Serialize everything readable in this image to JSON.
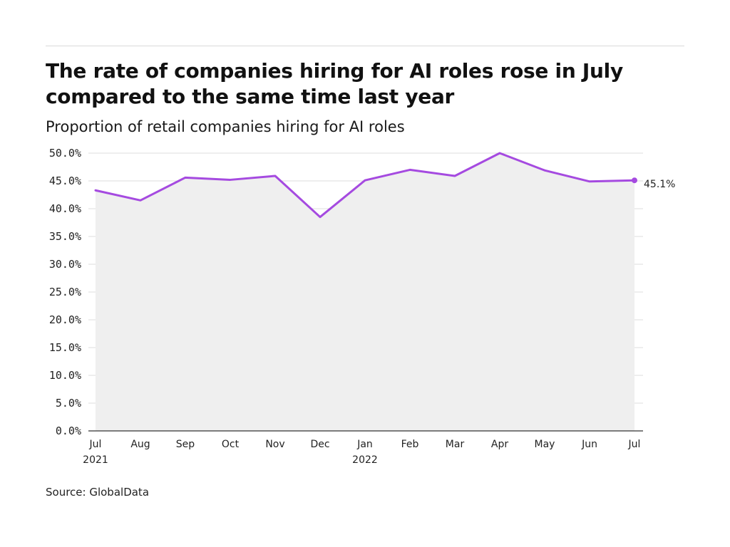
{
  "title": "The rate of companies hiring for AI roles rose in July compared to the same time last year",
  "subtitle": "Proportion of retail companies hiring for AI roles",
  "source": "Source: GlobalData",
  "end_label": "45.1%",
  "colors": {
    "line": "#a54ae0",
    "area": "#efefef",
    "grid": "#dddddd",
    "axis": "#333333"
  },
  "chart_data": {
    "type": "area",
    "title": "The rate of companies hiring for AI roles rose in July compared to the same time last year",
    "subtitle": "Proportion of retail companies hiring for AI roles",
    "categories": [
      "Jul 2021",
      "Aug",
      "Sep",
      "Oct",
      "Nov",
      "Dec",
      "Jan 2022",
      "Feb",
      "Mar",
      "Apr",
      "May",
      "Jun",
      "Jul"
    ],
    "x_tick_labels": [
      [
        "Jul",
        "2021"
      ],
      [
        "Aug"
      ],
      [
        "Sep"
      ],
      [
        "Oct"
      ],
      [
        "Nov"
      ],
      [
        "Dec"
      ],
      [
        "Jan",
        "2022"
      ],
      [
        "Feb"
      ],
      [
        "Mar"
      ],
      [
        "Apr"
      ],
      [
        "May"
      ],
      [
        "Jun"
      ],
      [
        "Jul"
      ]
    ],
    "values": [
      43.3,
      41.5,
      45.6,
      45.2,
      45.9,
      38.5,
      45.1,
      47.0,
      45.9,
      50.0,
      46.9,
      44.9,
      45.1
    ],
    "y_tick_labels": [
      "0.0%",
      "5.0%",
      "10.0%",
      "15.0%",
      "20.0%",
      "25.0%",
      "30.0%",
      "35.0%",
      "40.0%",
      "45.0%",
      "50.0%"
    ],
    "ylim": [
      0,
      50
    ],
    "y_ticks": [
      0,
      5,
      10,
      15,
      20,
      25,
      30,
      35,
      40,
      45,
      50
    ],
    "grid": true,
    "legend": "none",
    "end_marker": true,
    "xlabel": "",
    "ylabel": ""
  }
}
